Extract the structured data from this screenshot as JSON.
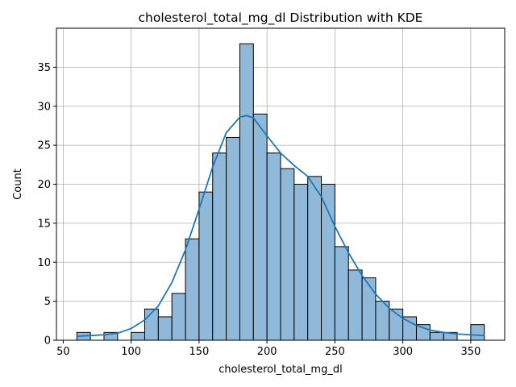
{
  "chart_data": {
    "type": "bar",
    "title": "cholesterol_total_mg_dl Distribution with KDE",
    "xlabel": "cholesterol_total_mg_dl",
    "ylabel": "Count",
    "xlim": [
      45,
      375
    ],
    "ylim": [
      0,
      40
    ],
    "x_ticks": [
      50,
      100,
      150,
      200,
      250,
      300,
      350
    ],
    "y_ticks": [
      0,
      5,
      10,
      15,
      20,
      25,
      30,
      35
    ],
    "grid": true,
    "bin_width": 10,
    "bin_start": 60,
    "counts": [
      1,
      0,
      1,
      0,
      1,
      4,
      3,
      6,
      13,
      19,
      24,
      26,
      38,
      29,
      24,
      22,
      20,
      21,
      20,
      12,
      9,
      8,
      5,
      4,
      3,
      2,
      1,
      1,
      0,
      2
    ],
    "kde": {
      "x": [
        60,
        70,
        80,
        90,
        100,
        110,
        120,
        130,
        140,
        150,
        160,
        170,
        180,
        185,
        190,
        200,
        210,
        220,
        230,
        240,
        250,
        260,
        270,
        280,
        290,
        300,
        310,
        320,
        330,
        340,
        350,
        360
      ],
      "y": [
        0.5,
        0.6,
        0.7,
        0.9,
        1.5,
        2.6,
        4.4,
        7.4,
        11.6,
        16.8,
        22.2,
        26.6,
        28.6,
        28.8,
        28.5,
        26.2,
        24.0,
        22.4,
        21.0,
        18.4,
        14.6,
        11.2,
        8.3,
        5.9,
        4.1,
        2.8,
        1.9,
        1.3,
        1.0,
        0.8,
        0.7,
        0.6
      ]
    },
    "colors": {
      "bar_fill": "#8fb8d9",
      "bar_edge": "#000000",
      "kde_line": "#1f77b4",
      "grid": "#b0b0b0"
    }
  }
}
